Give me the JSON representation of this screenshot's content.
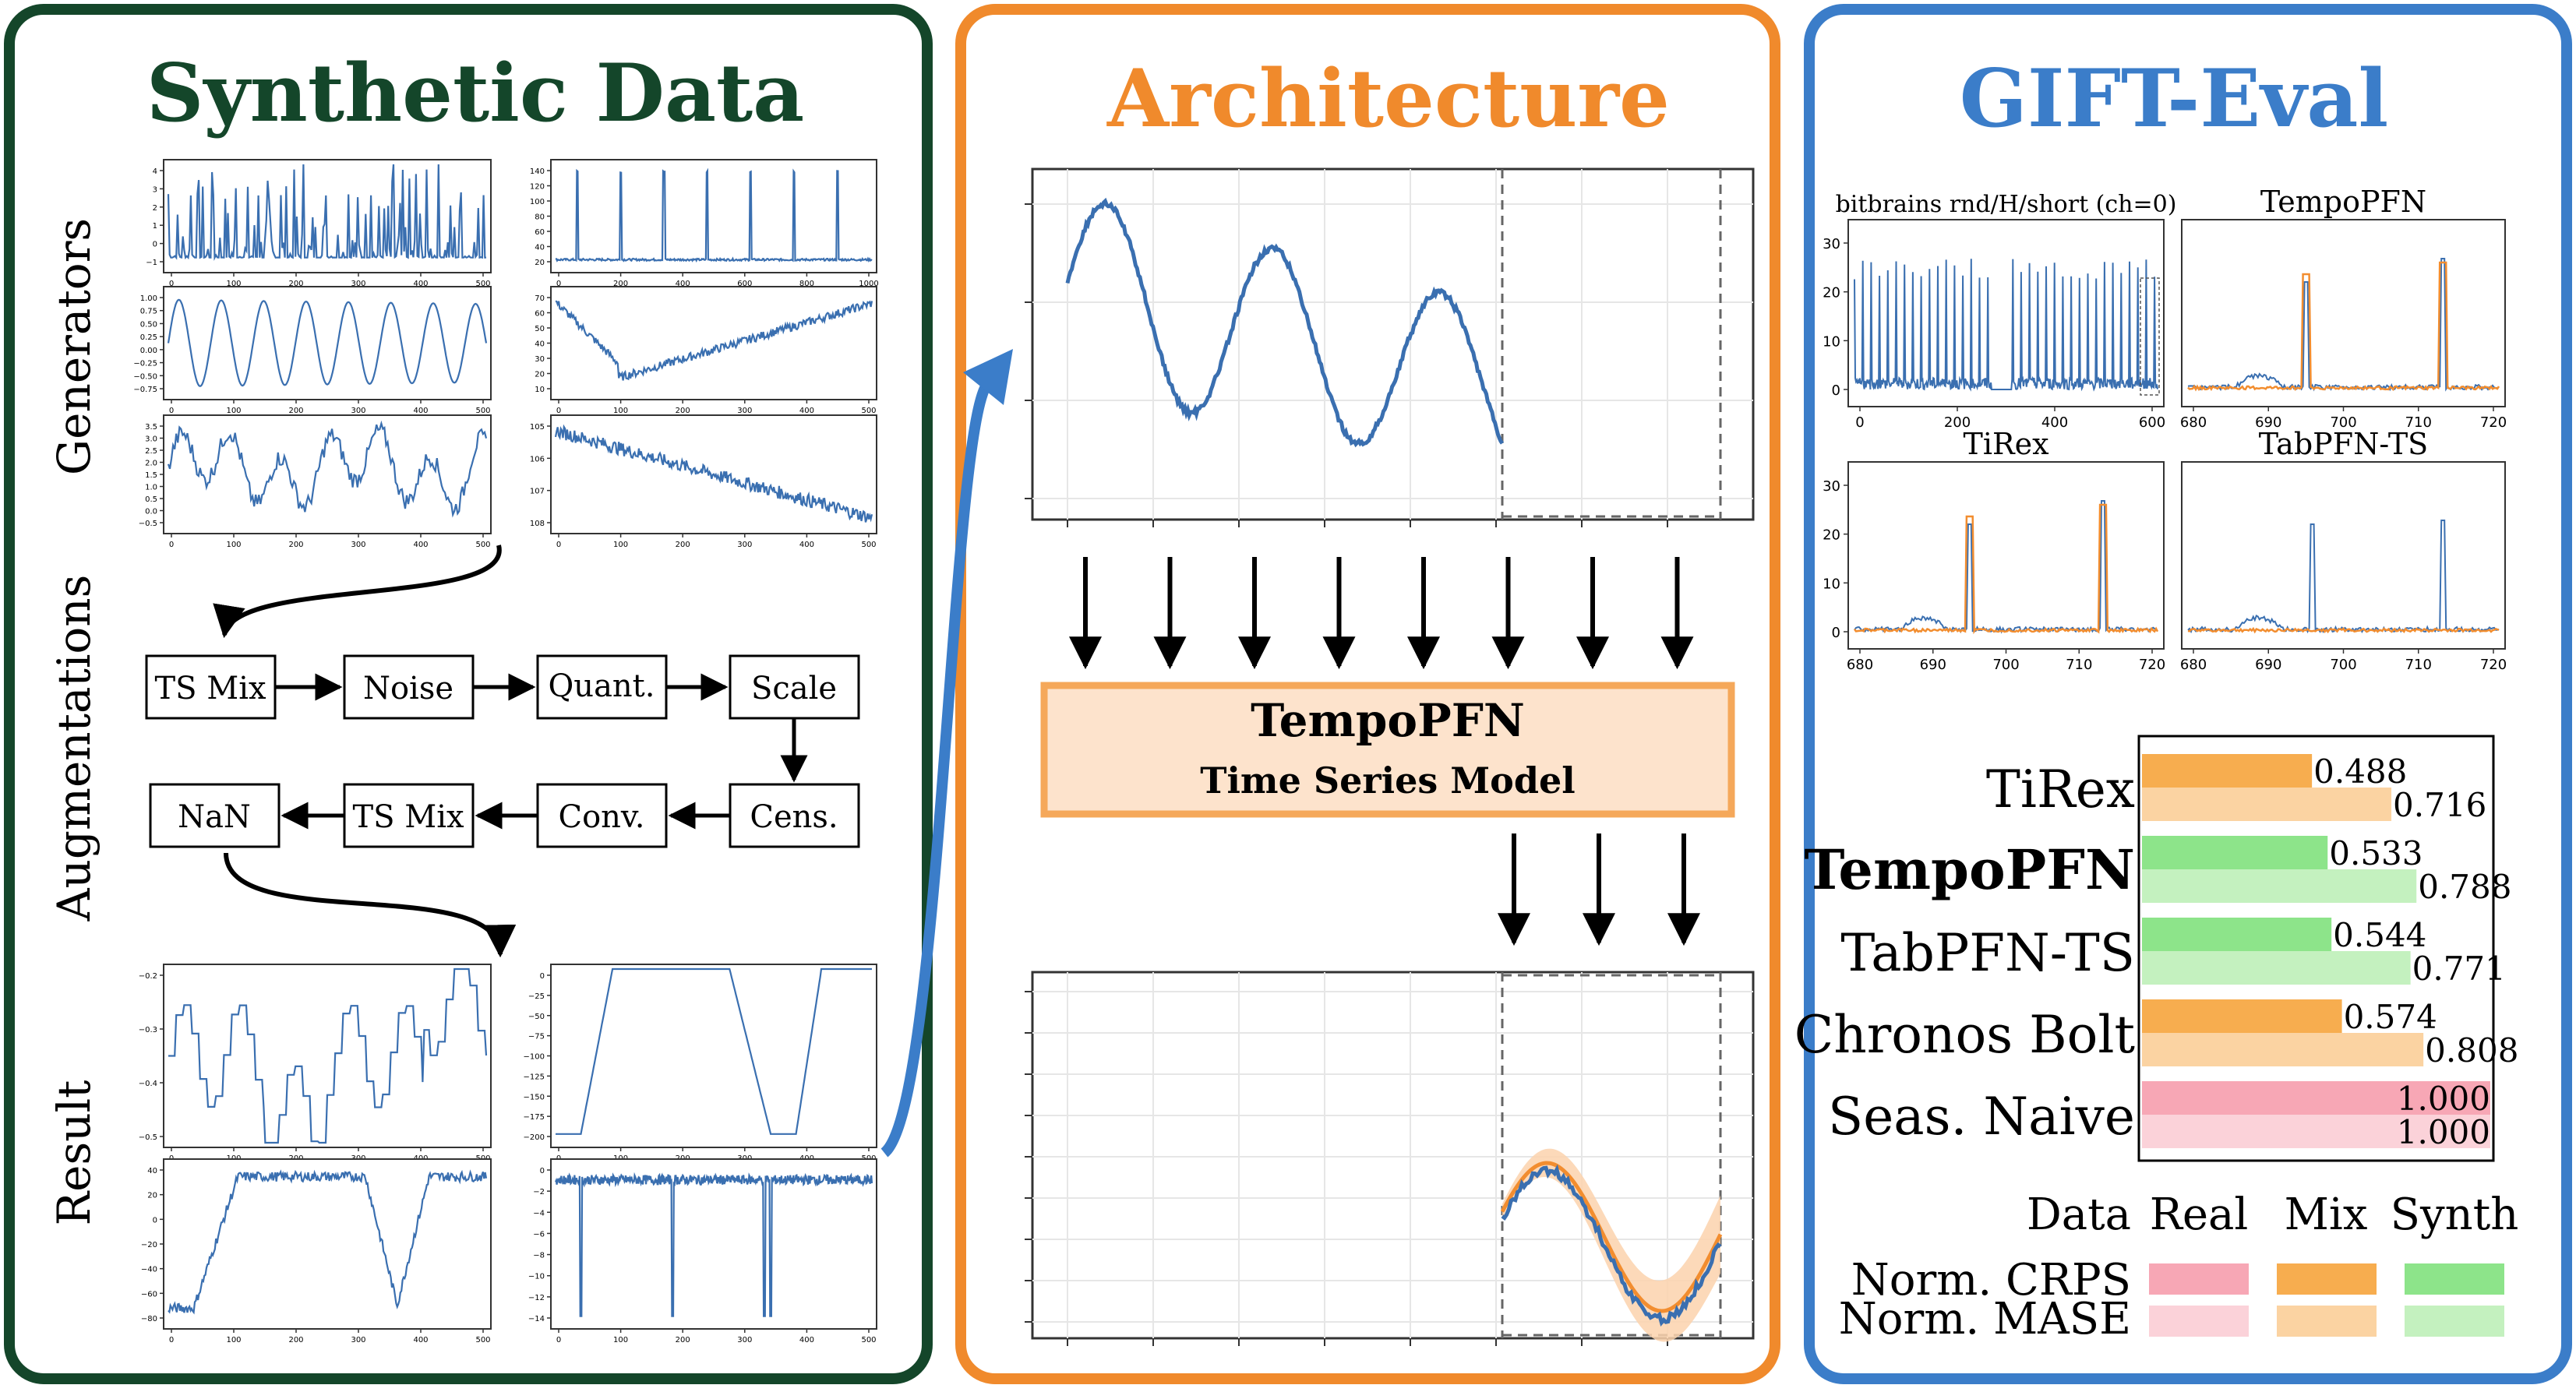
{
  "panels": {
    "synthetic": {
      "title": "Synthetic Data",
      "side_labels": [
        "Generators",
        "Augmentations",
        "Result"
      ],
      "pipeline_row1": [
        "TS Mix",
        "Noise",
        "Quant.",
        "Scale"
      ],
      "pipeline_row2": [
        "NaN",
        "TS Mix",
        "Conv.",
        "Cens."
      ],
      "generator_ticks": {
        "g1_y": [
          "4",
          "3",
          "2",
          "1",
          "0",
          "−1"
        ],
        "g1_x": [
          "0",
          "100",
          "200",
          "300",
          "400",
          "500"
        ],
        "g2_y": [
          "140",
          "120",
          "100",
          "80",
          "60",
          "40",
          "20"
        ],
        "g2_x": [
          "0",
          "200",
          "400",
          "600",
          "800",
          "1000"
        ],
        "g3_y": [
          "1.00",
          "0.75",
          "0.50",
          "0.25",
          "0.00",
          "−0.25",
          "−0.50",
          "−0.75"
        ],
        "g3_x": [
          "0",
          "100",
          "200",
          "300",
          "400",
          "500"
        ],
        "g4_y": [
          "70",
          "60",
          "50",
          "40",
          "30",
          "20",
          "10"
        ],
        "g4_x": [
          "0",
          "100",
          "200",
          "300",
          "400",
          "500"
        ],
        "g5_y": [
          "3.5",
          "3.0",
          "2.5",
          "2.0",
          "1.5",
          "1.0",
          "0.5",
          "0.0",
          "−0.5"
        ],
        "g5_x": [
          "0",
          "100",
          "200",
          "300",
          "400",
          "500"
        ],
        "g6_y": [
          "105",
          "106",
          "107",
          "108"
        ],
        "g6_x": [
          "0",
          "100",
          "200",
          "300",
          "400",
          "500"
        ]
      },
      "result_ticks": {
        "r1_y": [
          "−0.2",
          "−0.3",
          "−0.4",
          "−0.5"
        ],
        "r1_x": [
          "0",
          "100",
          "200",
          "300",
          "400",
          "500"
        ],
        "r2_y": [
          "0",
          "−25",
          "−50",
          "−75",
          "−100",
          "−125",
          "−150",
          "−175",
          "−200"
        ],
        "r2_x": [
          "0",
          "100",
          "200",
          "300",
          "400",
          "500"
        ],
        "r3_y": [
          "40",
          "20",
          "0",
          "−20",
          "−40",
          "−60",
          "−80"
        ],
        "r3_x": [
          "0",
          "100",
          "200",
          "300",
          "400",
          "500"
        ],
        "r4_y": [
          "0",
          "−2",
          "−4",
          "−6",
          "−8",
          "−10",
          "−12",
          "−14"
        ],
        "r4_x": [
          "0",
          "100",
          "200",
          "300",
          "400",
          "500"
        ]
      }
    },
    "architecture": {
      "title": "Architecture",
      "model_name": "TempoPFN",
      "model_subtitle": "Time Series Model"
    },
    "gift": {
      "title": "GIFT-Eval",
      "plots": [
        {
          "title": "bitbrains rnd/H/short (ch=0)",
          "yticks": [
            "30",
            "20",
            "10",
            "0"
          ],
          "xticks": [
            "0",
            "200",
            "400",
            "600"
          ]
        },
        {
          "title": "TempoPFN",
          "yticks": [],
          "xticks": [
            "680",
            "690",
            "700",
            "710",
            "720"
          ]
        },
        {
          "title": "TiRex",
          "yticks": [
            "30",
            "20",
            "10",
            "0"
          ],
          "xticks": [
            "680",
            "690",
            "700",
            "710",
            "720"
          ]
        },
        {
          "title": "TabPFN-TS",
          "yticks": [],
          "xticks": [
            "680",
            "690",
            "700",
            "710",
            "720"
          ]
        }
      ],
      "legend": {
        "header": [
          "Data",
          "Real",
          "Mix",
          "Synth"
        ],
        "rows": [
          "Norm. CRPS",
          "Norm. MASE"
        ]
      }
    }
  },
  "chart_data": {
    "type": "bar",
    "categories": [
      "TiRex",
      "TempoPFN",
      "TabPFN-TS",
      "Chronos Bolt",
      "Seas. Naive"
    ],
    "data_source": [
      "Mix",
      "Synth",
      "Synth",
      "Mix",
      "Real"
    ],
    "series": [
      {
        "name": "Norm. CRPS",
        "values": [
          0.488,
          0.533,
          0.544,
          0.574,
          1.0
        ]
      },
      {
        "name": "Norm. MASE",
        "values": [
          0.716,
          0.788,
          0.771,
          0.808,
          1.0
        ]
      }
    ],
    "value_labels": {
      "crps": [
        "0.488",
        "0.533",
        "0.544",
        "0.574",
        "1.000"
      ],
      "mase": [
        "0.716",
        "0.788",
        "0.771",
        "0.808",
        "1.000"
      ]
    },
    "bold_category": "TempoPFN",
    "xlim": [
      0,
      1.0
    ]
  },
  "colors": {
    "green_border": "#14462a",
    "orange_border": "#f08a2c",
    "blue_border": "#3b7dc9",
    "series_blue": "#3a6fb0",
    "forecast_orange": "#f28d2f",
    "real_crps": "#f7a7b5",
    "real_mase": "#fbd2d9",
    "mix_crps": "#f7ad4f",
    "mix_mase": "#fbd3a2",
    "synth_crps": "#8de48a",
    "synth_mase": "#c4f1bf"
  }
}
